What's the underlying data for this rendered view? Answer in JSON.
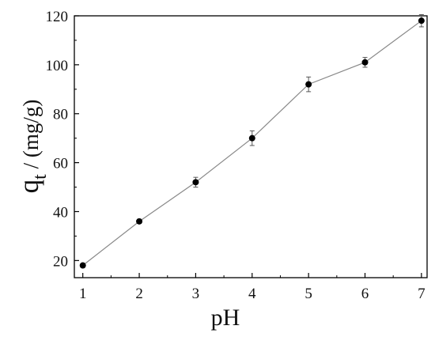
{
  "chart_data": {
    "type": "line",
    "xlabel": "pH",
    "ylabel_main": "q",
    "ylabel_sub": "t",
    "ylabel_unit": " / (mg/g)",
    "xlim": [
      0.85,
      7.1
    ],
    "ylim": [
      13,
      120
    ],
    "xticks": [
      1,
      2,
      3,
      4,
      5,
      6,
      7
    ],
    "yticks": [
      20,
      40,
      60,
      80,
      100,
      120
    ],
    "series": [
      {
        "x": [
          1,
          2,
          3,
          4,
          5,
          6,
          7
        ],
        "y": [
          18,
          36,
          52,
          70,
          92,
          101,
          118
        ],
        "error": [
          0.8,
          0.8,
          2,
          3,
          3,
          2,
          2.5
        ]
      }
    ],
    "grid": false,
    "legend": "none",
    "colors": {
      "line": "#888888",
      "marker": "#000000",
      "axis": "#000000"
    }
  }
}
